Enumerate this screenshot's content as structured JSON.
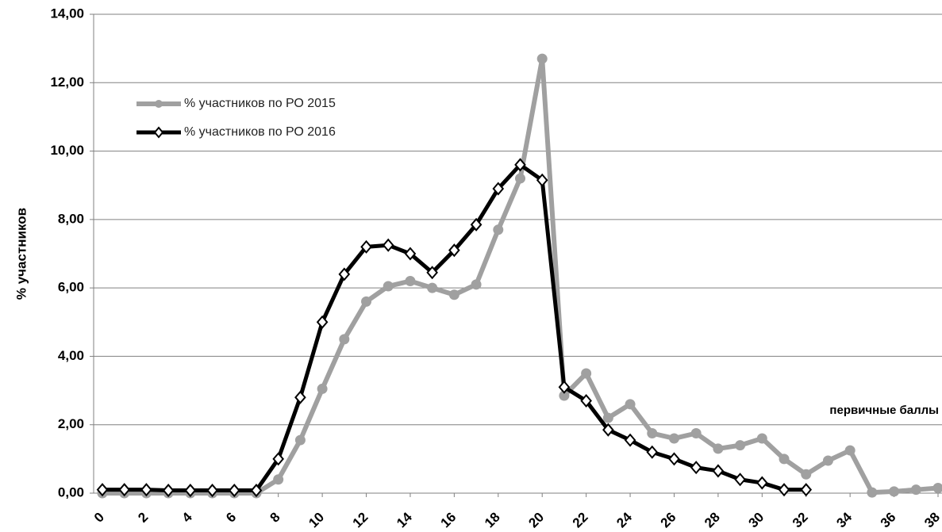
{
  "chart_data": {
    "type": "line",
    "y_label": "% участников",
    "annotation": "первичные баллы",
    "x": [
      0,
      1,
      2,
      3,
      4,
      5,
      6,
      7,
      8,
      9,
      10,
      11,
      12,
      13,
      14,
      15,
      16,
      17,
      18,
      19,
      20,
      21,
      22,
      23,
      24,
      25,
      26,
      27,
      28,
      29,
      30,
      31,
      32,
      33,
      34,
      35,
      36,
      37,
      38
    ],
    "xlim": [
      0,
      38
    ],
    "xticks": [
      0,
      2,
      4,
      6,
      8,
      10,
      12,
      14,
      16,
      18,
      20,
      22,
      24,
      26,
      28,
      30,
      32,
      34,
      36,
      38
    ],
    "ylim": [
      0,
      14
    ],
    "yticks": [
      {
        "value": 0,
        "label": "0,00"
      },
      {
        "value": 2,
        "label": "2,00"
      },
      {
        "value": 4,
        "label": "4,00"
      },
      {
        "value": 6,
        "label": "6,00"
      },
      {
        "value": 8,
        "label": "8,00"
      },
      {
        "value": 10,
        "label": "10,00"
      },
      {
        "value": 12,
        "label": "12,00"
      },
      {
        "value": 14,
        "label": "14,00"
      }
    ],
    "grid": true,
    "legend": "upper left",
    "series": [
      {
        "name": "% участников по РО 2015",
        "color": "#a0a0a0",
        "marker": "circle",
        "values": [
          0,
          0,
          0,
          0,
          0,
          0,
          0,
          0,
          0.4,
          1.55,
          3.05,
          4.5,
          5.6,
          6.05,
          6.2,
          6.0,
          5.8,
          6.1,
          7.7,
          9.2,
          12.7,
          2.85,
          3.5,
          2.2,
          2.6,
          1.75,
          1.6,
          1.75,
          1.3,
          1.4,
          1.6,
          1.0,
          0.55,
          0.95,
          1.25,
          0.02,
          0.05,
          0.1,
          0.15
        ]
      },
      {
        "name": "% участников по РО 2016",
        "color": "#000000",
        "marker": "diamond",
        "values": [
          0.1,
          0.1,
          0.1,
          0.08,
          0.08,
          0.08,
          0.08,
          0.08,
          1.0,
          2.8,
          5.0,
          6.4,
          7.2,
          7.25,
          7.0,
          6.45,
          7.1,
          7.85,
          8.9,
          9.6,
          9.15,
          3.1,
          2.7,
          1.85,
          1.55,
          1.2,
          1.0,
          0.75,
          0.65,
          0.4,
          0.3,
          0.1,
          0.1,
          null,
          null,
          null,
          null,
          null,
          null
        ]
      }
    ]
  }
}
